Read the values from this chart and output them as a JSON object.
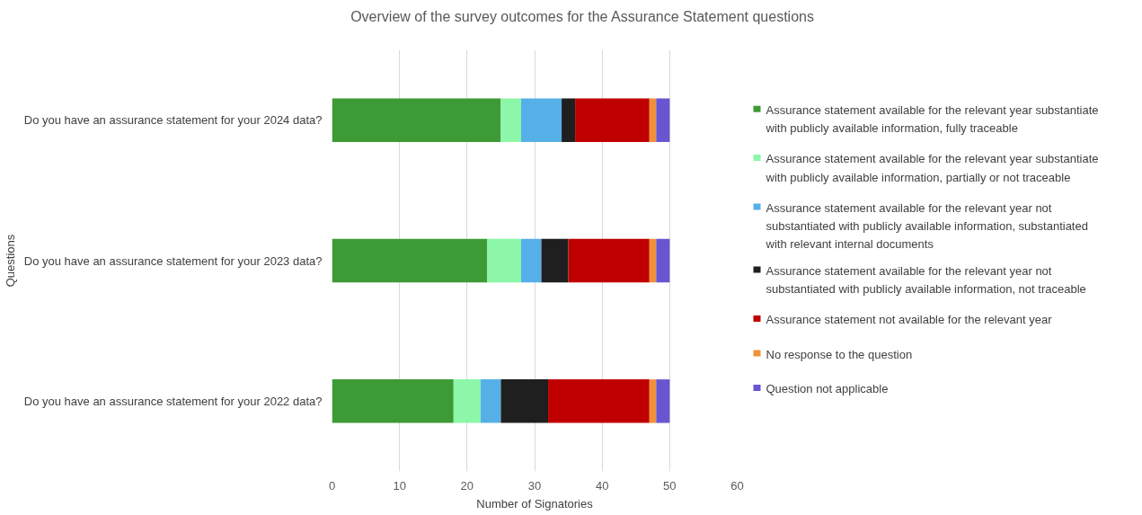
{
  "chart_data": {
    "type": "bar",
    "orientation": "horizontal",
    "stacked": true,
    "title": "Overview of the survey outcomes for the Assurance Statement questions",
    "xlabel": "Number of Signatories",
    "ylabel": "Questions",
    "categories": [
      "Do you have an assurance statement for your 2024 data?",
      "Do you have an assurance statement for your 2023 data?",
      "Do you have an assurance statement for your 2022 data?"
    ],
    "xlim": [
      0,
      60
    ],
    "xticks": [
      0,
      10,
      20,
      30,
      40,
      50,
      60
    ],
    "grid": "x",
    "legend": "right",
    "series": [
      {
        "name": "Assurance statement available for the relevant year substantiate with publicly available information, fully traceable",
        "color": "#3d9b35",
        "values": [
          25,
          23,
          18
        ]
      },
      {
        "name": "Assurance statement available for the relevant year substantiate with publicly available information, partially or not traceable",
        "color": "#8cf7a8",
        "values": [
          3,
          5,
          4
        ]
      },
      {
        "name": "Assurance statement available for the relevant year not substantiated with publicly available information, substantiated with relevant internal documents",
        "color": "#56b0e8",
        "values": [
          6,
          3,
          3
        ]
      },
      {
        "name": "Assurance statement available for the relevant year not substantiated with publicly available information, not traceable",
        "color": "#1f1f1f",
        "values": [
          2,
          4,
          7
        ]
      },
      {
        "name": "Assurance statement not available for the relevant year",
        "color": "#c00000",
        "values": [
          11,
          12,
          15
        ]
      },
      {
        "name": "No response to the question",
        "color": "#f0913a",
        "values": [
          1,
          1,
          1
        ]
      },
      {
        "name": "Question not applicable",
        "color": "#6a55d0",
        "values": [
          2,
          2,
          2
        ]
      }
    ]
  }
}
